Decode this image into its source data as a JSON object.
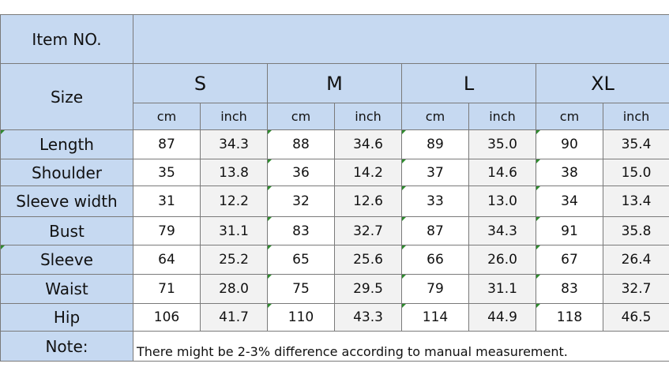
{
  "item_label": "Item NO.",
  "size_label": "Size",
  "sizes": [
    "S",
    "M",
    "L",
    "XL"
  ],
  "units": [
    "cm",
    "inch",
    "cm",
    "inch",
    "cm",
    "inch",
    "cm",
    "inch"
  ],
  "rows": [
    {
      "label": "Length",
      "values": [
        "87",
        "34.3",
        "88",
        "34.6",
        "89",
        "35.0",
        "90",
        "35.4"
      ]
    },
    {
      "label": "Shoulder",
      "values": [
        "35",
        "13.8",
        "36",
        "14.2",
        "37",
        "14.6",
        "38",
        "15.0"
      ]
    },
    {
      "label": "Sleeve width",
      "values": [
        "31",
        "12.2",
        "32",
        "12.6",
        "33",
        "13.0",
        "34",
        "13.4"
      ]
    },
    {
      "label": "Bust",
      "values": [
        "79",
        "31.1",
        "83",
        "32.7",
        "87",
        "34.3",
        "91",
        "35.8"
      ]
    },
    {
      "label": "Sleeve",
      "values": [
        "64",
        "25.2",
        "65",
        "25.6",
        "66",
        "26.0",
        "67",
        "26.4"
      ]
    },
    {
      "label": "Waist",
      "values": [
        "71",
        "28.0",
        "75",
        "29.5",
        "79",
        "31.1",
        "83",
        "32.7"
      ]
    },
    {
      "label": "Hip",
      "values": [
        "106",
        "41.7",
        "110",
        "43.3",
        "114",
        "44.9",
        "118",
        "46.5"
      ]
    }
  ],
  "note_label": "Note:",
  "note_text": "There might be 2-3% difference according to manual measurement.",
  "colors": {
    "header_blue": "#c6d9f1",
    "alt_gray": "#f2f2f2",
    "border": "#7a7a7a"
  }
}
